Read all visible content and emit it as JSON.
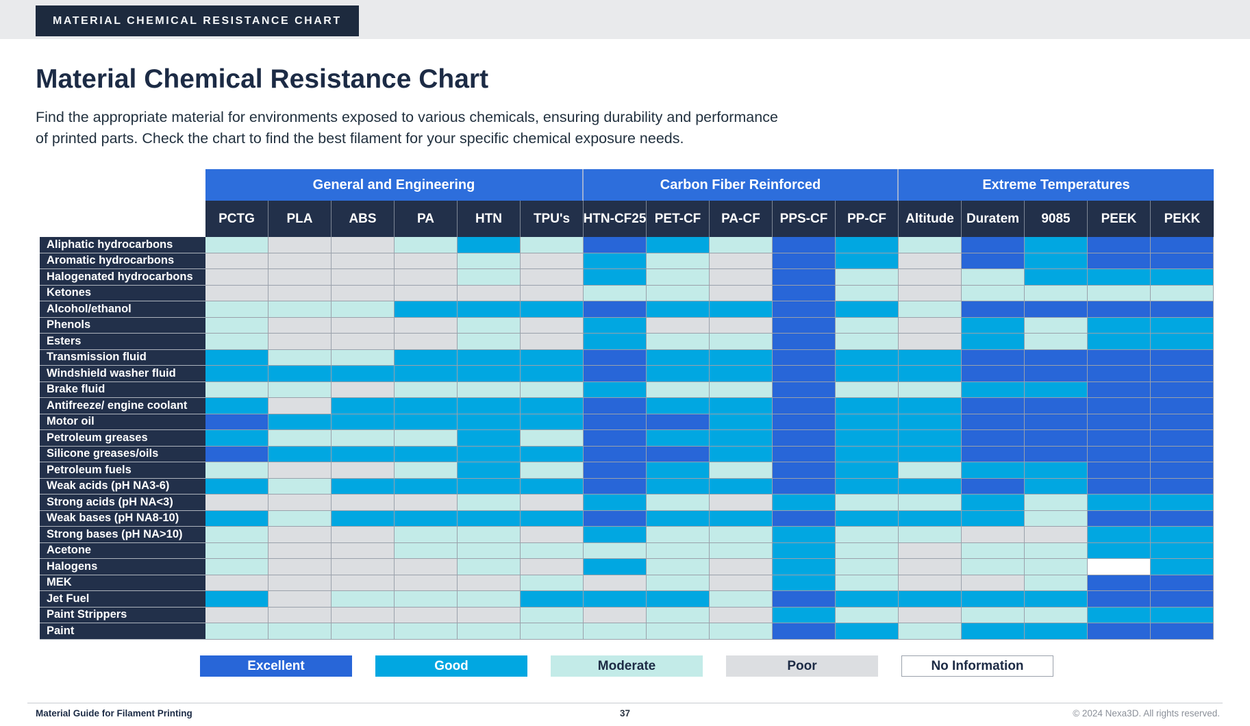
{
  "banner": {
    "label": "MATERIAL CHEMICAL RESISTANCE CHART"
  },
  "header": {
    "title": "Material Chemical Resistance Chart",
    "subtitle_line1": "Find the appropriate material for environments exposed to various chemicals, ensuring durability and performance",
    "subtitle_line2": "of printed parts. Check the chart to find the best filament for your specific chemical exposure needs."
  },
  "chart_data": {
    "type": "heatmap",
    "title": "Material Chemical Resistance Chart",
    "column_groups": [
      {
        "label": "General and Engineering",
        "span": 6
      },
      {
        "label": "Carbon Fiber Reinforced",
        "span": 5
      },
      {
        "label": "Extreme Temperatures",
        "span": 5
      }
    ],
    "columns": [
      "PCTG",
      "PLA",
      "ABS",
      "PA",
      "HTN",
      "TPU's",
      "HTN-CF25",
      "PET-CF",
      "PA-CF",
      "PPS-CF",
      "PP-CF",
      "Altitude",
      "Duratem",
      "9085",
      "PEEK",
      "PEKK"
    ],
    "rows": [
      "Aliphatic hydrocarbons",
      "Aromatic hydrocarbons",
      "Halogenated hydrocarbons",
      "Ketones",
      "Alcohol/ethanol",
      "Phenols",
      "Esters",
      "Transmission fluid",
      "Windshield washer fluid",
      "Brake fluid",
      "Antifreeze/ engine coolant",
      "Motor oil",
      "Petroleum greases",
      "Silicone greases/oils",
      "Petroleum fuels",
      "Weak acids (pH NA3-6)",
      "Strong acids (pH NA<3)",
      "Weak bases (pH NA8-10)",
      "Strong bases (pH NA>10)",
      "Acetone",
      "Halogens",
      "MEK",
      "Jet Fuel",
      "Paint Strippers",
      "Paint"
    ],
    "values": [
      [
        "M",
        "P",
        "P",
        "M",
        "G",
        "M",
        "E",
        "G",
        "M",
        "E",
        "G",
        "M",
        "E",
        "G",
        "E",
        "E"
      ],
      [
        "P",
        "P",
        "P",
        "P",
        "M",
        "P",
        "G",
        "M",
        "P",
        "E",
        "G",
        "P",
        "E",
        "G",
        "E",
        "E"
      ],
      [
        "P",
        "P",
        "P",
        "P",
        "M",
        "P",
        "G",
        "M",
        "P",
        "E",
        "M",
        "P",
        "M",
        "G",
        "G",
        "G"
      ],
      [
        "P",
        "P",
        "P",
        "P",
        "P",
        "P",
        "M",
        "M",
        "P",
        "E",
        "M",
        "P",
        "M",
        "M",
        "M",
        "M"
      ],
      [
        "M",
        "M",
        "M",
        "G",
        "G",
        "G",
        "E",
        "G",
        "G",
        "E",
        "G",
        "M",
        "E",
        "E",
        "E",
        "E"
      ],
      [
        "M",
        "P",
        "P",
        "P",
        "M",
        "P",
        "G",
        "P",
        "P",
        "E",
        "M",
        "P",
        "G",
        "M",
        "G",
        "G"
      ],
      [
        "M",
        "P",
        "P",
        "P",
        "M",
        "P",
        "G",
        "M",
        "M",
        "E",
        "M",
        "P",
        "G",
        "M",
        "G",
        "G"
      ],
      [
        "G",
        "M",
        "M",
        "G",
        "G",
        "G",
        "E",
        "G",
        "G",
        "E",
        "G",
        "G",
        "E",
        "E",
        "E",
        "E"
      ],
      [
        "G",
        "G",
        "G",
        "G",
        "G",
        "G",
        "E",
        "G",
        "G",
        "E",
        "G",
        "G",
        "E",
        "E",
        "E",
        "E"
      ],
      [
        "M",
        "M",
        "P",
        "M",
        "M",
        "M",
        "G",
        "M",
        "M",
        "E",
        "M",
        "M",
        "G",
        "G",
        "E",
        "E"
      ],
      [
        "G",
        "P",
        "G",
        "G",
        "G",
        "G",
        "E",
        "G",
        "G",
        "E",
        "G",
        "G",
        "E",
        "E",
        "E",
        "E"
      ],
      [
        "E",
        "G",
        "G",
        "G",
        "G",
        "G",
        "E",
        "E",
        "G",
        "E",
        "G",
        "G",
        "E",
        "E",
        "E",
        "E"
      ],
      [
        "G",
        "M",
        "M",
        "M",
        "G",
        "M",
        "E",
        "G",
        "G",
        "E",
        "G",
        "G",
        "E",
        "E",
        "E",
        "E"
      ],
      [
        "E",
        "G",
        "G",
        "G",
        "G",
        "G",
        "E",
        "E",
        "G",
        "E",
        "G",
        "G",
        "E",
        "E",
        "E",
        "E"
      ],
      [
        "M",
        "P",
        "P",
        "M",
        "G",
        "M",
        "E",
        "G",
        "M",
        "E",
        "G",
        "M",
        "G",
        "G",
        "E",
        "E"
      ],
      [
        "G",
        "M",
        "G",
        "G",
        "G",
        "G",
        "E",
        "G",
        "G",
        "E",
        "G",
        "G",
        "E",
        "G",
        "E",
        "E"
      ],
      [
        "P",
        "P",
        "P",
        "P",
        "M",
        "P",
        "G",
        "M",
        "P",
        "G",
        "M",
        "M",
        "G",
        "M",
        "G",
        "G"
      ],
      [
        "G",
        "M",
        "G",
        "G",
        "G",
        "G",
        "E",
        "G",
        "G",
        "E",
        "G",
        "G",
        "G",
        "M",
        "E",
        "E"
      ],
      [
        "M",
        "P",
        "P",
        "M",
        "M",
        "P",
        "G",
        "M",
        "M",
        "G",
        "M",
        "M",
        "P",
        "P",
        "G",
        "G"
      ],
      [
        "M",
        "P",
        "P",
        "M",
        "M",
        "M",
        "M",
        "M",
        "M",
        "G",
        "M",
        "P",
        "M",
        "M",
        "G",
        "G"
      ],
      [
        "M",
        "P",
        "P",
        "P",
        "M",
        "P",
        "G",
        "M",
        "P",
        "G",
        "M",
        "P",
        "M",
        "M",
        "N",
        "G"
      ],
      [
        "P",
        "P",
        "P",
        "P",
        "P",
        "M",
        "P",
        "M",
        "P",
        "G",
        "M",
        "P",
        "P",
        "M",
        "E",
        "E"
      ],
      [
        "G",
        "P",
        "M",
        "M",
        "M",
        "G",
        "G",
        "G",
        "M",
        "E",
        "G",
        "G",
        "G",
        "G",
        "E",
        "E"
      ],
      [
        "P",
        "P",
        "P",
        "P",
        "P",
        "M",
        "P",
        "M",
        "P",
        "G",
        "M",
        "P",
        "M",
        "M",
        "G",
        "G"
      ],
      [
        "M",
        "M",
        "M",
        "M",
        "M",
        "M",
        "M",
        "M",
        "M",
        "E",
        "G",
        "M",
        "G",
        "G",
        "E",
        "E"
      ]
    ],
    "legend": [
      {
        "code": "E",
        "label": "Excellent",
        "color": "#2866d8",
        "text": "#ffffff"
      },
      {
        "code": "G",
        "label": "Good",
        "color": "#01a7e1",
        "text": "#ffffff"
      },
      {
        "code": "M",
        "label": "Moderate",
        "color": "#c3ebe8",
        "text": "#1d2b45"
      },
      {
        "code": "P",
        "label": "Poor",
        "color": "#dcdee1",
        "text": "#1d2b45"
      },
      {
        "code": "N",
        "label": "No Information",
        "color": "#ffffff",
        "text": "#1d2b45"
      }
    ]
  },
  "footer": {
    "left": "Material Guide for Filament Printing",
    "page": "37",
    "right": "© 2024 Nexa3D. All rights reserved."
  }
}
